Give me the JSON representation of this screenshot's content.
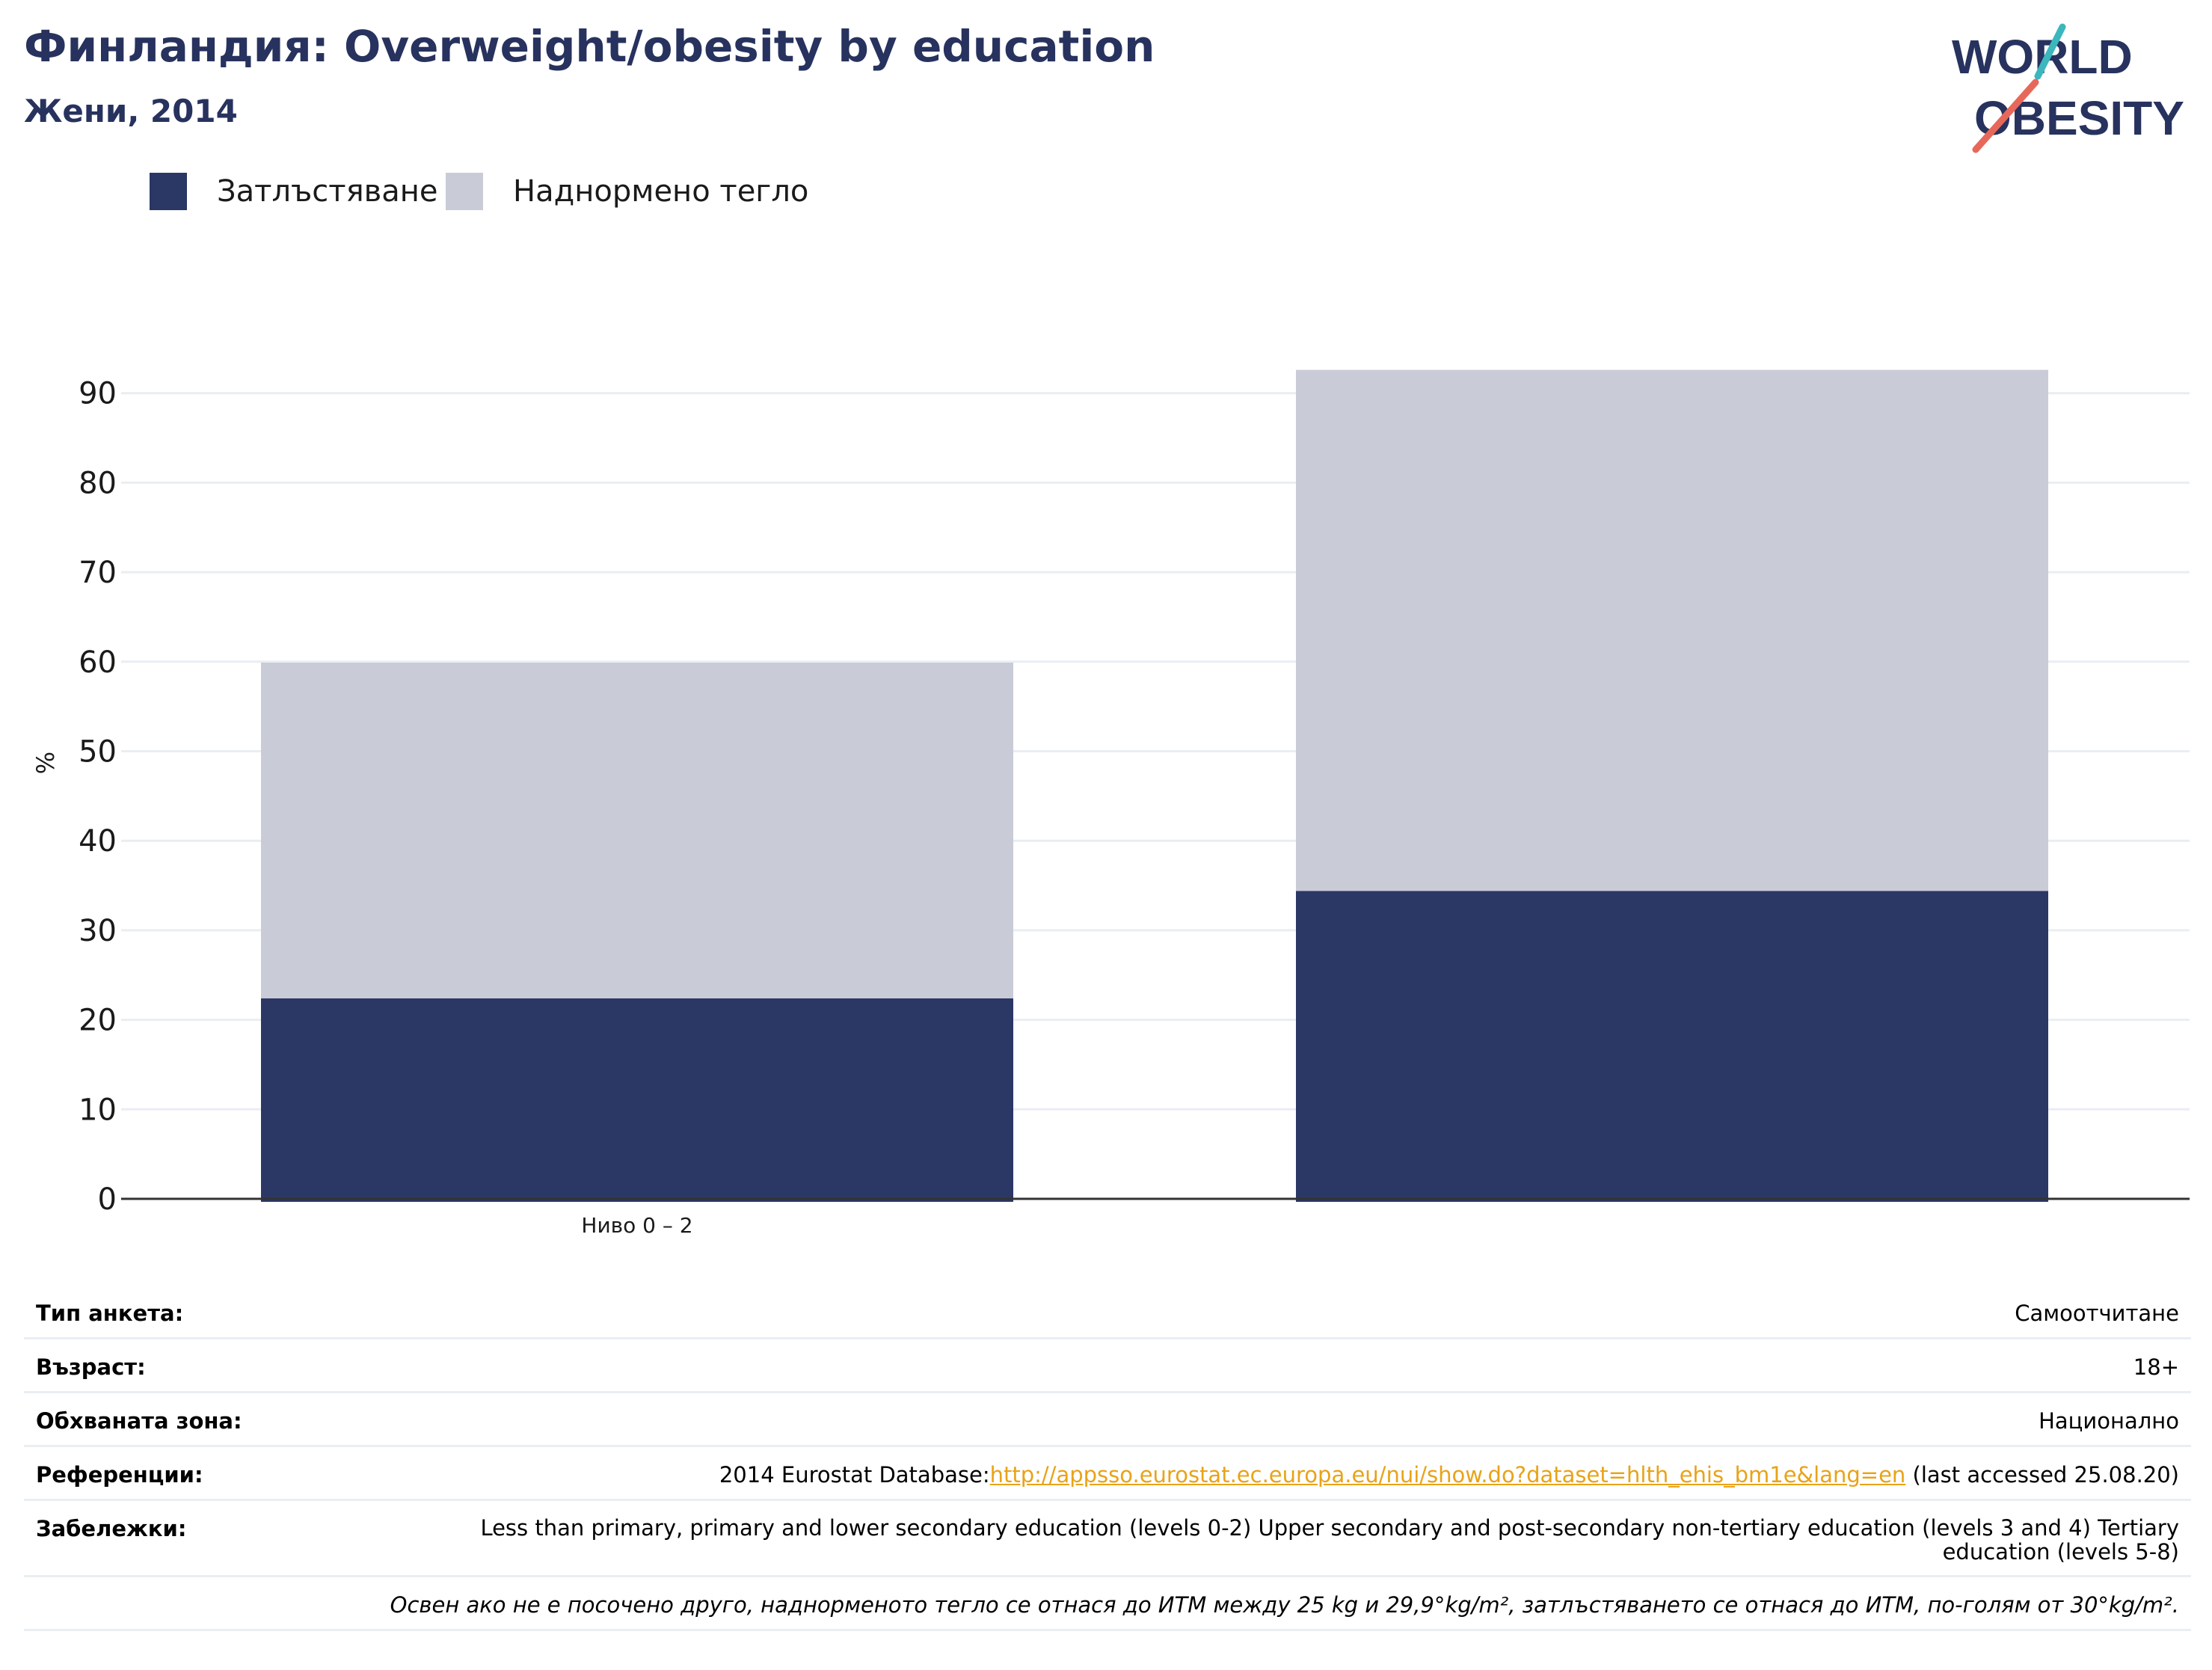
{
  "header": {
    "title": "Финландия: Overweight/obesity by education",
    "subtitle": "Жени, 2014"
  },
  "logo": {
    "line1": "WORLD",
    "line2": "OBESITY",
    "colors": {
      "text": "#27325e",
      "slash_teal": "#3bb7bd",
      "slash_coral": "#e7685a"
    }
  },
  "colors": {
    "obesity": "#2b3764",
    "overweight": "#c9cbd7",
    "grid": "#e9eef3",
    "axis": "#333333",
    "title": "#27325e"
  },
  "chart_data": {
    "type": "bar",
    "stacked": true,
    "categories": [
      "Ниво 0 – 2",
      ""
    ],
    "series": [
      {
        "name": "Затлъстяване",
        "values": [
          22.4,
          34.4
        ],
        "color": "#2b3764"
      },
      {
        "name": "Наднормено тегло",
        "values": [
          37.5,
          58.2
        ],
        "color": "#c9cbd7"
      }
    ],
    "xlabel": "",
    "ylabel": "%",
    "ylim": [
      0,
      95
    ],
    "yticks": [
      0,
      10,
      20,
      30,
      40,
      50,
      60,
      70,
      80,
      90
    ],
    "grid": true,
    "legend": "top-left"
  },
  "info": {
    "survey_type": {
      "label": "Тип анкета:",
      "value": "Самоотчитане"
    },
    "age": {
      "label": "Възраст:",
      "value": "18+"
    },
    "area": {
      "label": "Обхваната зона:",
      "value": "Национално"
    },
    "references": {
      "label": "Референции:",
      "prefix": "2014 Eurostat Database:",
      "link": "http://appsso.eurostat.ec.europa.eu/nui/show.do?dataset=hlth_ehis_bm1e&lang=en",
      "suffix": " (last accessed 25.08.20)"
    },
    "notes": {
      "label": "Забележки:",
      "value": "Less than primary, primary and lower secondary education (levels 0-2) Upper secondary and post-secondary non-tertiary education (levels 3 and 4) Tertiary education (levels 5-8)"
    },
    "footnote": "Освен ако не е посочено друго, наднорменото тегло се отнася до ИТМ между 25 kg и 29,9°kg/m², затлъстяването се отнася до ИТМ, по-голям от 30°kg/m²."
  }
}
